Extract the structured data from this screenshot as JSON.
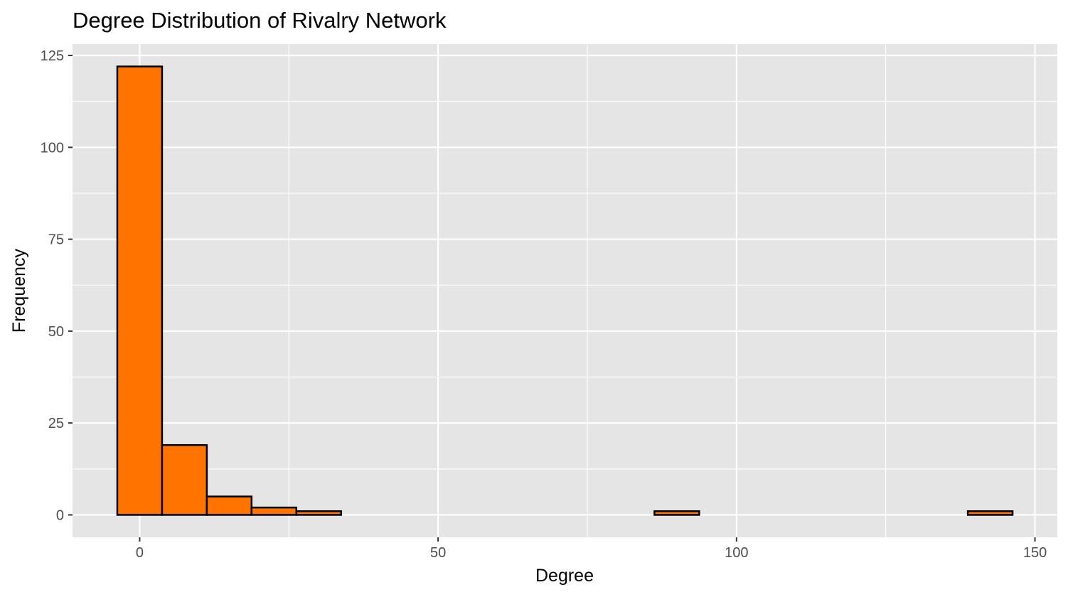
{
  "chart_data": {
    "type": "bar",
    "title": "Degree Distribution of Rivalry Network",
    "xlabel": "Degree",
    "ylabel": "Frequency",
    "bins": [
      {
        "x0": -3.75,
        "x1": 3.75,
        "count": 122
      },
      {
        "x0": 3.75,
        "x1": 11.25,
        "count": 19
      },
      {
        "x0": 11.25,
        "x1": 18.75,
        "count": 5
      },
      {
        "x0": 18.75,
        "x1": 26.25,
        "count": 2
      },
      {
        "x0": 26.25,
        "x1": 33.75,
        "count": 1
      },
      {
        "x0": 33.75,
        "x1": 41.25,
        "count": 0
      },
      {
        "x0": 41.25,
        "x1": 48.75,
        "count": 0
      },
      {
        "x0": 48.75,
        "x1": 56.25,
        "count": 0
      },
      {
        "x0": 56.25,
        "x1": 63.75,
        "count": 0
      },
      {
        "x0": 63.75,
        "x1": 71.25,
        "count": 0
      },
      {
        "x0": 71.25,
        "x1": 78.75,
        "count": 0
      },
      {
        "x0": 78.75,
        "x1": 86.25,
        "count": 0
      },
      {
        "x0": 86.25,
        "x1": 93.75,
        "count": 1
      },
      {
        "x0": 93.75,
        "x1": 101.25,
        "count": 0
      },
      {
        "x0": 101.25,
        "x1": 108.75,
        "count": 0
      },
      {
        "x0": 108.75,
        "x1": 116.25,
        "count": 0
      },
      {
        "x0": 116.25,
        "x1": 123.75,
        "count": 0
      },
      {
        "x0": 123.75,
        "x1": 131.25,
        "count": 0
      },
      {
        "x0": 131.25,
        "x1": 138.75,
        "count": 0
      },
      {
        "x0": 138.75,
        "x1": 146.25,
        "count": 1
      }
    ],
    "xlim": [
      -11.25,
      153.75
    ],
    "ylim": [
      -6.1,
      128.1
    ],
    "x_ticks": [
      0,
      50,
      100,
      150
    ],
    "x_minor_ticks": [
      25,
      75,
      125
    ],
    "y_ticks": [
      0,
      25,
      50,
      75,
      100,
      125
    ],
    "y_minor_ticks": [
      12.5,
      37.5,
      62.5,
      87.5,
      112.5
    ],
    "grid": true,
    "legend": "none",
    "colors": {
      "bar_fill": "#FF7300",
      "bar_outline": "#000000",
      "panel_background": "#E5E5E5",
      "grid": "#FFFFFF",
      "tick_label": "#4D4D4D"
    }
  }
}
